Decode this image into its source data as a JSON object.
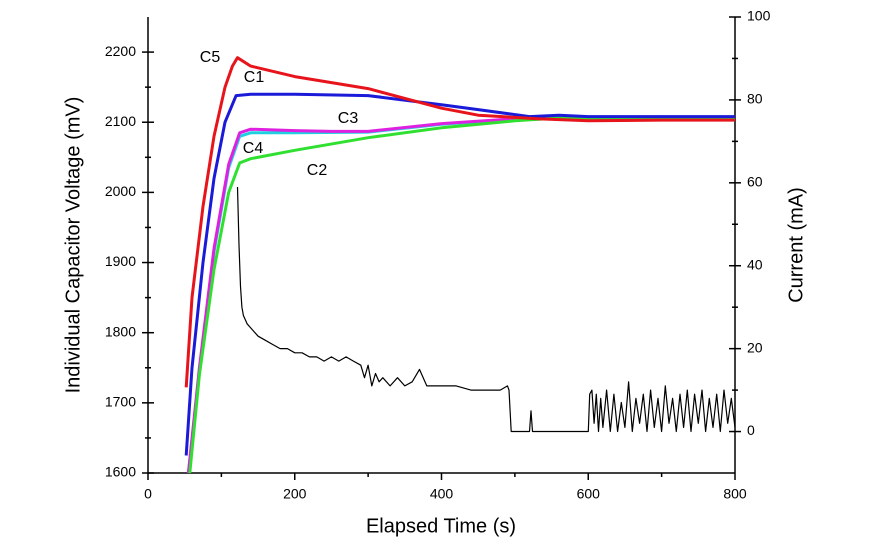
{
  "chart_data": {
    "type": "line",
    "xlabel": "Elapsed Time (s)",
    "ylabel": "Individual Capacitor Voltage (mV)",
    "y2label": "Current (mA)",
    "xlim": [
      0,
      800
    ],
    "xticks": [
      0,
      200,
      400,
      600,
      800
    ],
    "ylim": [
      1600,
      2250
    ],
    "yticks": [
      1600,
      1700,
      1800,
      1900,
      2000,
      2100,
      2200
    ],
    "y2lim": [
      -10,
      100
    ],
    "y2ticks": [
      0,
      20,
      40,
      60,
      80,
      100
    ],
    "series": [
      {
        "name": "C5",
        "color": "#e8141c",
        "x": [
          52,
          60,
          75,
          90,
          105,
          115,
          122,
          140,
          200,
          300,
          400,
          450,
          530,
          600,
          700,
          800
        ],
        "values": [
          1722,
          1850,
          1980,
          2080,
          2150,
          2180,
          2192,
          2180,
          2165,
          2148,
          2120,
          2110,
          2105,
          2102,
          2103,
          2103
        ]
      },
      {
        "name": "C1",
        "color": "#1a1ad8",
        "x": [
          52,
          60,
          75,
          90,
          105,
          120,
          140,
          200,
          300,
          400,
          450,
          520,
          560,
          600,
          700,
          800
        ],
        "values": [
          1625,
          1750,
          1900,
          2020,
          2100,
          2138,
          2140,
          2140,
          2138,
          2125,
          2118,
          2108,
          2110,
          2108,
          2108,
          2108
        ]
      },
      {
        "name": "C3",
        "color": "#e020e0",
        "x": [
          55,
          70,
          90,
          110,
          125,
          140,
          200,
          250,
          300,
          400,
          500,
          600,
          700,
          800
        ],
        "values": [
          1600,
          1750,
          1920,
          2040,
          2085,
          2090,
          2088,
          2087,
          2087,
          2098,
          2105,
          2106,
          2106,
          2106
        ]
      },
      {
        "name": "C4",
        "color": "#20d0e0",
        "x": [
          55,
          70,
          90,
          110,
          125,
          140,
          200,
          300,
          400,
          500,
          600,
          800
        ],
        "values": [
          1600,
          1745,
          1915,
          2035,
          2080,
          2085,
          2085,
          2086,
          2097,
          2104,
          2106,
          2106
        ]
      },
      {
        "name": "C2",
        "color": "#30e030",
        "x": [
          57,
          70,
          90,
          110,
          125,
          140,
          200,
          300,
          400,
          500,
          560,
          600,
          700,
          800
        ],
        "values": [
          1600,
          1740,
          1890,
          2000,
          2042,
          2048,
          2060,
          2078,
          2092,
          2102,
          2106,
          2104,
          2106,
          2106
        ]
      },
      {
        "color": "#000000",
        "axis": "y2",
        "x": [
          122,
          124,
          126,
          128,
          130,
          135,
          140,
          150,
          160,
          170,
          180,
          190,
          200,
          210,
          220,
          230,
          240,
          250,
          260,
          270,
          280,
          290,
          295,
          300,
          305,
          310,
          315,
          320,
          330,
          340,
          350,
          360,
          370,
          380,
          400,
          420,
          440,
          460,
          480,
          490,
          492,
          495,
          520,
          522,
          524,
          526,
          530,
          560,
          590,
          600,
          602,
          605,
          608,
          611,
          614,
          617,
          620,
          625,
          630,
          635,
          640,
          645,
          650,
          655,
          660,
          665,
          670,
          675,
          680,
          685,
          690,
          695,
          700,
          705,
          710,
          715,
          720,
          725,
          730,
          735,
          740,
          745,
          750,
          755,
          760,
          765,
          770,
          775,
          780,
          785,
          790,
          795,
          800
        ],
        "values": [
          59,
          45,
          35,
          30,
          28,
          26,
          25,
          23,
          22,
          21,
          20,
          20,
          19,
          19,
          18,
          18,
          17,
          18,
          17,
          18,
          17,
          16,
          13,
          16,
          11,
          14,
          12,
          13,
          11,
          13,
          11,
          12,
          15,
          11,
          11,
          11,
          10,
          10,
          10,
          11,
          10,
          0,
          0,
          5,
          0,
          0,
          0,
          0,
          0,
          0,
          9,
          10,
          2,
          9,
          0,
          8,
          1,
          10,
          0,
          9,
          0,
          7,
          1,
          12,
          0,
          8,
          2,
          9,
          0,
          10,
          1,
          8,
          0,
          11,
          2,
          8,
          0,
          9,
          1,
          10,
          0,
          9,
          2,
          10,
          0,
          8,
          1,
          9,
          0,
          10,
          2,
          8,
          1
        ]
      }
    ]
  }
}
